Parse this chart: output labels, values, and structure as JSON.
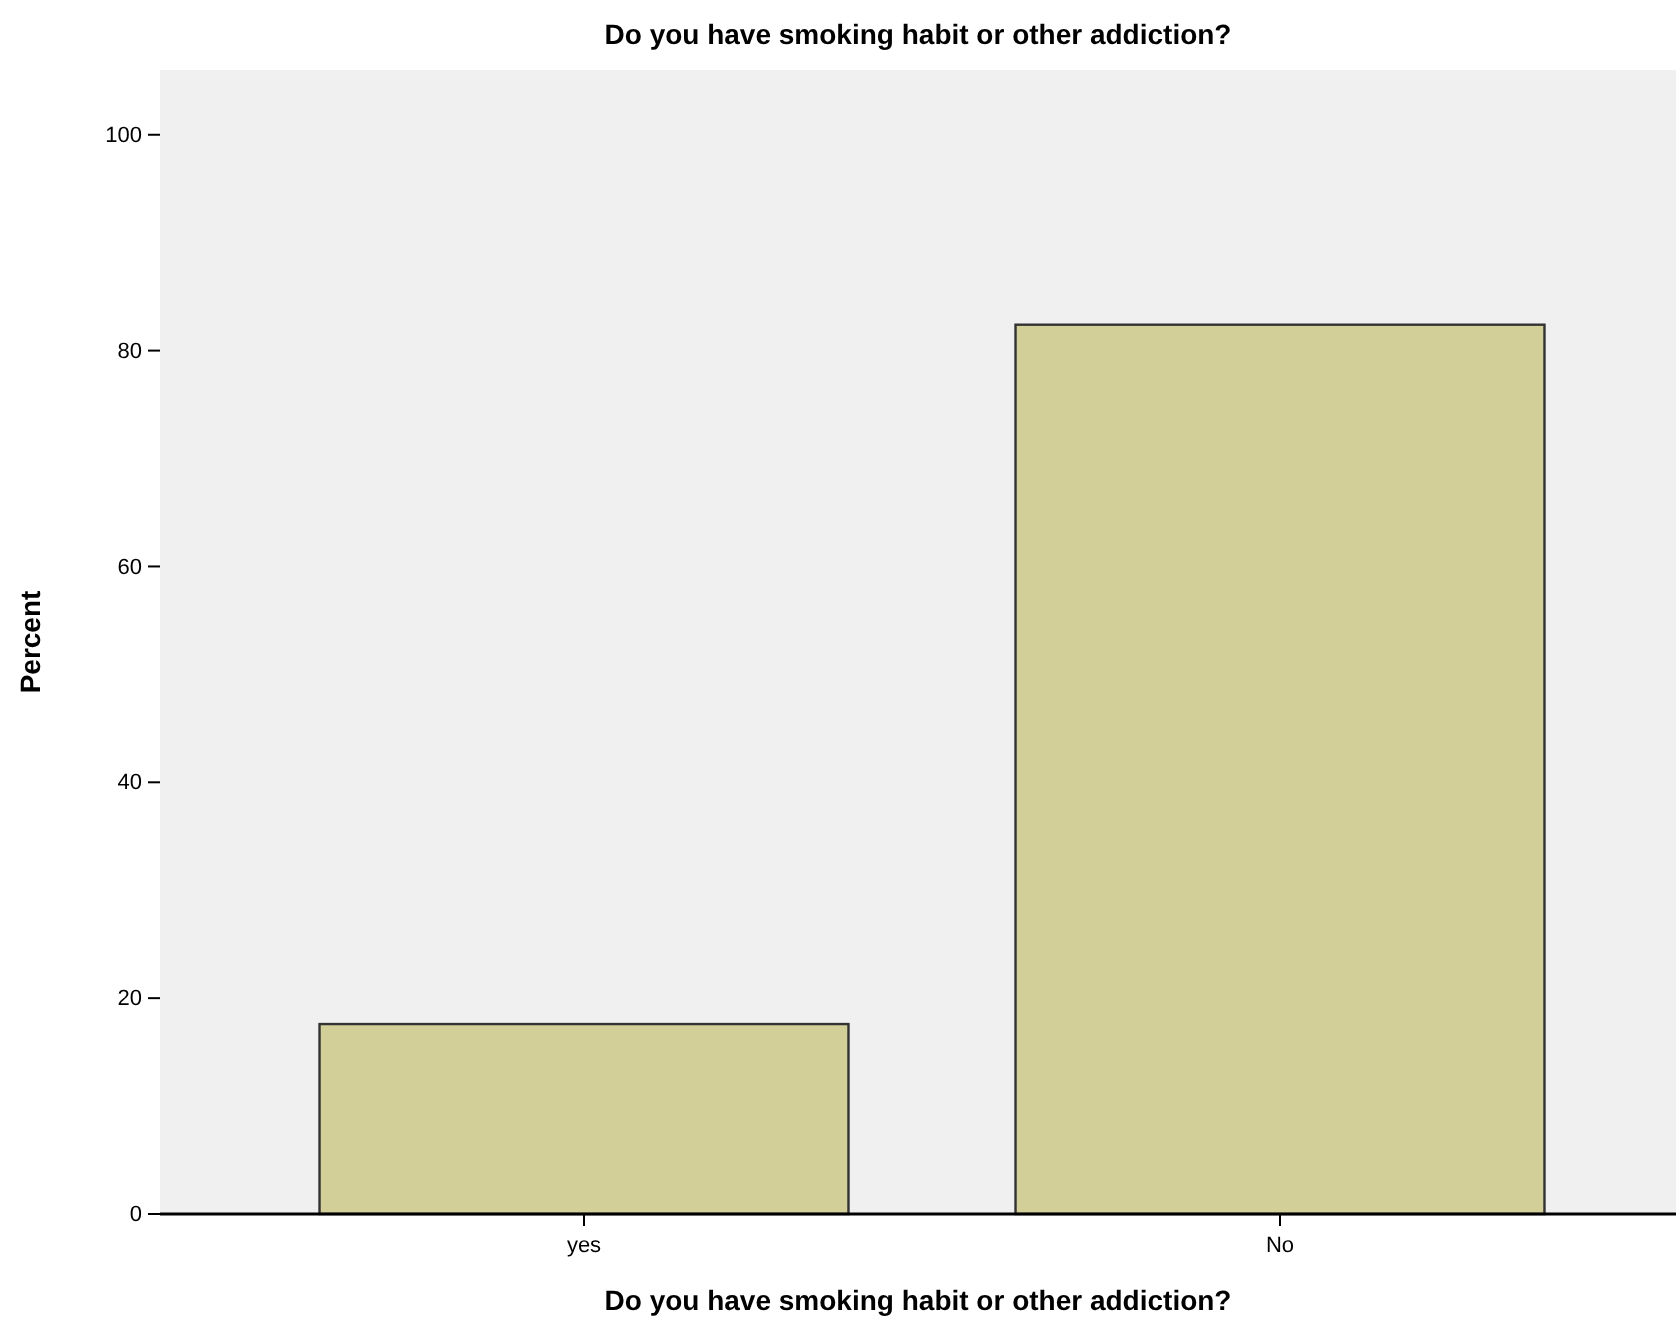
{
  "chart_data": {
    "type": "bar",
    "title": "Do you have smoking habit or other addiction?",
    "xlabel": "Do you have smoking habit or other addiction?",
    "ylabel": "Percent",
    "categories": [
      "yes",
      "No"
    ],
    "values": [
      17.6,
      82.4
    ],
    "color": "#d3cf98",
    "ylim": [
      0,
      106
    ],
    "yticks": [
      0,
      20,
      40,
      60,
      80,
      100
    ],
    "grid": false
  }
}
